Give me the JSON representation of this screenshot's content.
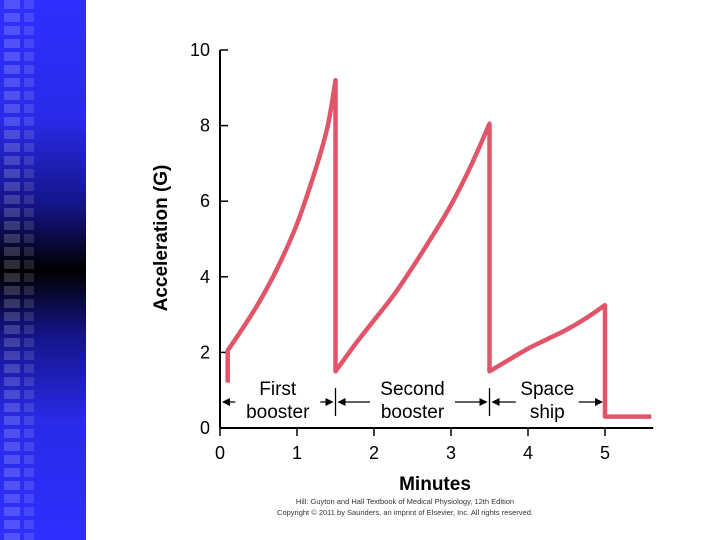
{
  "slide": {
    "credit_line1": "Hill: Guyton and Hall Textbook of Medical Physiology, 12th Edition",
    "credit_line2": "Copyright © 2011 by Saunders, an imprint of Elsevier, Inc. All rights reserved."
  },
  "colors": {
    "line": "#e0556a",
    "axis": "#000000",
    "sidebar": "#2f2fff"
  },
  "chart_data": {
    "type": "line",
    "title": "",
    "xlabel": "Minutes",
    "ylabel": "Acceleration (G)",
    "xlim": [
      0,
      5.6
    ],
    "ylim": [
      0,
      10
    ],
    "xticks": [
      0,
      1,
      2,
      3,
      4,
      5
    ],
    "yticks": [
      0,
      2,
      4,
      6,
      8,
      10
    ],
    "grid": false,
    "series": [
      {
        "values": [
          {
            "x": 0.1,
            "y": 1.2
          },
          {
            "x": 0.1,
            "y": 2.05
          },
          {
            "x": 0.25,
            "y": 2.5
          },
          {
            "x": 0.5,
            "y": 3.3
          },
          {
            "x": 0.75,
            "y": 4.25
          },
          {
            "x": 1.0,
            "y": 5.4
          },
          {
            "x": 1.25,
            "y": 6.9
          },
          {
            "x": 1.4,
            "y": 8.0
          },
          {
            "x": 1.5,
            "y": 9.2
          },
          {
            "x": 1.5,
            "y": 1.5
          },
          {
            "x": 1.75,
            "y": 2.2
          },
          {
            "x": 2.0,
            "y": 2.85
          },
          {
            "x": 2.25,
            "y": 3.5
          },
          {
            "x": 2.5,
            "y": 4.25
          },
          {
            "x": 2.75,
            "y": 5.05
          },
          {
            "x": 3.0,
            "y": 5.9
          },
          {
            "x": 3.25,
            "y": 6.9
          },
          {
            "x": 3.5,
            "y": 8.05
          },
          {
            "x": 3.5,
            "y": 1.5
          },
          {
            "x": 3.75,
            "y": 1.8
          },
          {
            "x": 4.0,
            "y": 2.1
          },
          {
            "x": 4.25,
            "y": 2.35
          },
          {
            "x": 4.5,
            "y": 2.6
          },
          {
            "x": 4.75,
            "y": 2.9
          },
          {
            "x": 5.0,
            "y": 3.25
          },
          {
            "x": 5.0,
            "y": 0.3
          },
          {
            "x": 5.6,
            "y": 0.3
          }
        ]
      }
    ],
    "annotations": [
      {
        "text_line1": "First",
        "text_line2": "booster",
        "x_start": 0,
        "x_end": 1.5
      },
      {
        "text_line1": "Second",
        "text_line2": "booster",
        "x_start": 1.5,
        "x_end": 3.5
      },
      {
        "text_line1": "Space",
        "text_line2": "ship",
        "x_start": 3.5,
        "x_end": 5.0
      }
    ]
  }
}
